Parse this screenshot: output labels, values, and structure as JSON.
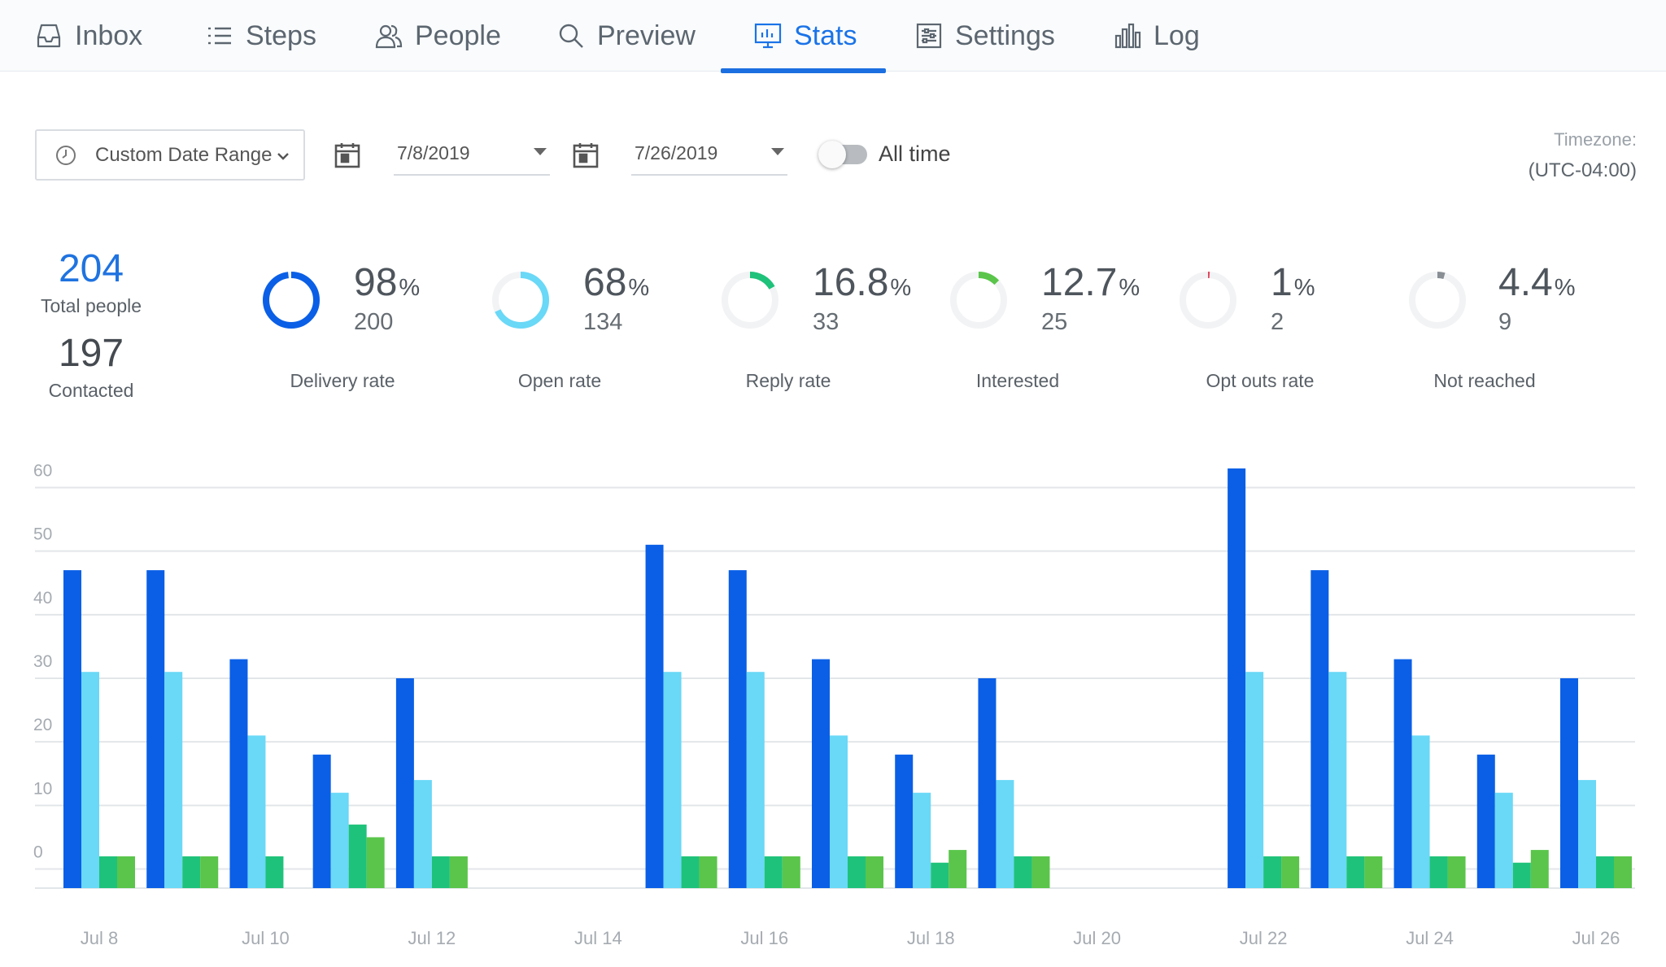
{
  "tabs": [
    {
      "label": "Inbox",
      "icon": "inbox-icon",
      "active": false
    },
    {
      "label": "Steps",
      "icon": "list-icon",
      "active": false
    },
    {
      "label": "People",
      "icon": "people-icon",
      "active": false
    },
    {
      "label": "Preview",
      "icon": "search-icon",
      "active": false
    },
    {
      "label": "Stats",
      "icon": "stats-icon",
      "active": true
    },
    {
      "label": "Settings",
      "icon": "settings-icon",
      "active": false
    },
    {
      "label": "Log",
      "icon": "bar-chart-icon",
      "active": false
    }
  ],
  "filters": {
    "date_range": "Custom Date Range",
    "start_date": "7/8/2019",
    "end_date": "7/26/2019",
    "all_time_label": "All time",
    "all_time_on": false,
    "timezone_label": "Timezone:",
    "timezone_value": "(UTC-04:00)"
  },
  "summary": {
    "total_people": "204",
    "total_people_label": "Total people",
    "contacted": "197",
    "contacted_label": "Contacted"
  },
  "metrics": [
    {
      "pct": "98",
      "count": "200",
      "label": "Delivery rate",
      "fraction": 0.98,
      "color": "#0a5fe6"
    },
    {
      "pct": "68",
      "count": "134",
      "label": "Open rate",
      "fraction": 0.68,
      "color": "#6ad8f7"
    },
    {
      "pct": "16.8",
      "count": "33",
      "label": "Reply rate",
      "fraction": 0.168,
      "color": "#1fc27a"
    },
    {
      "pct": "12.7",
      "count": "25",
      "label": "Interested",
      "fraction": 0.127,
      "color": "#5ac54a"
    },
    {
      "pct": "1",
      "count": "2",
      "label": "Opt outs rate",
      "fraction": 0.01,
      "color": "#e0445a"
    },
    {
      "pct": "4.4",
      "count": "9",
      "label": "Not reached",
      "fraction": 0.044,
      "color": "#888e94"
    }
  ],
  "pct_symbol": "%",
  "chart_data": {
    "type": "bar",
    "categories": [
      "Jul 8",
      "Jul 9",
      "Jul 10",
      "Jul 11",
      "Jul 12",
      "Jul 13",
      "Jul 14",
      "Jul 15",
      "Jul 16",
      "Jul 17",
      "Jul 18",
      "Jul 19",
      "Jul 20",
      "Jul 21",
      "Jul 22",
      "Jul 23",
      "Jul 24",
      "Jul 25",
      "Jul 26"
    ],
    "x_tick_labels": [
      "Jul 8",
      "",
      "Jul 10",
      "",
      "Jul 12",
      "",
      "Jul 14",
      "",
      "Jul 16",
      "",
      "Jul 18",
      "",
      "Jul 20",
      "",
      "Jul 22",
      "",
      "Jul 24",
      "",
      "Jul 26"
    ],
    "y_ticks": [
      0,
      10,
      20,
      30,
      40,
      50,
      60
    ],
    "ylim": [
      -3,
      63
    ],
    "grid": true,
    "series": [
      {
        "values": [
          47,
          47,
          33,
          18,
          30,
          0,
          0,
          51,
          47,
          33,
          18,
          30,
          0,
          0,
          63,
          47,
          33,
          18,
          30
        ],
        "color": "#0a5fe6"
      },
      {
        "values": [
          31,
          31,
          21,
          12,
          14,
          0,
          0,
          31,
          31,
          21,
          12,
          14,
          0,
          0,
          31,
          31,
          21,
          12,
          14
        ],
        "color": "#6ad8f7"
      },
      {
        "values": [
          2,
          2,
          2,
          7,
          2,
          0,
          0,
          2,
          2,
          2,
          1,
          2,
          0,
          0,
          2,
          2,
          2,
          1,
          2
        ],
        "color": "#1fc27a"
      },
      {
        "values": [
          2,
          2,
          0,
          5,
          2,
          0,
          0,
          2,
          2,
          2,
          3,
          2,
          0,
          0,
          2,
          2,
          2,
          3,
          2
        ],
        "color": "#5ac54a"
      }
    ]
  }
}
